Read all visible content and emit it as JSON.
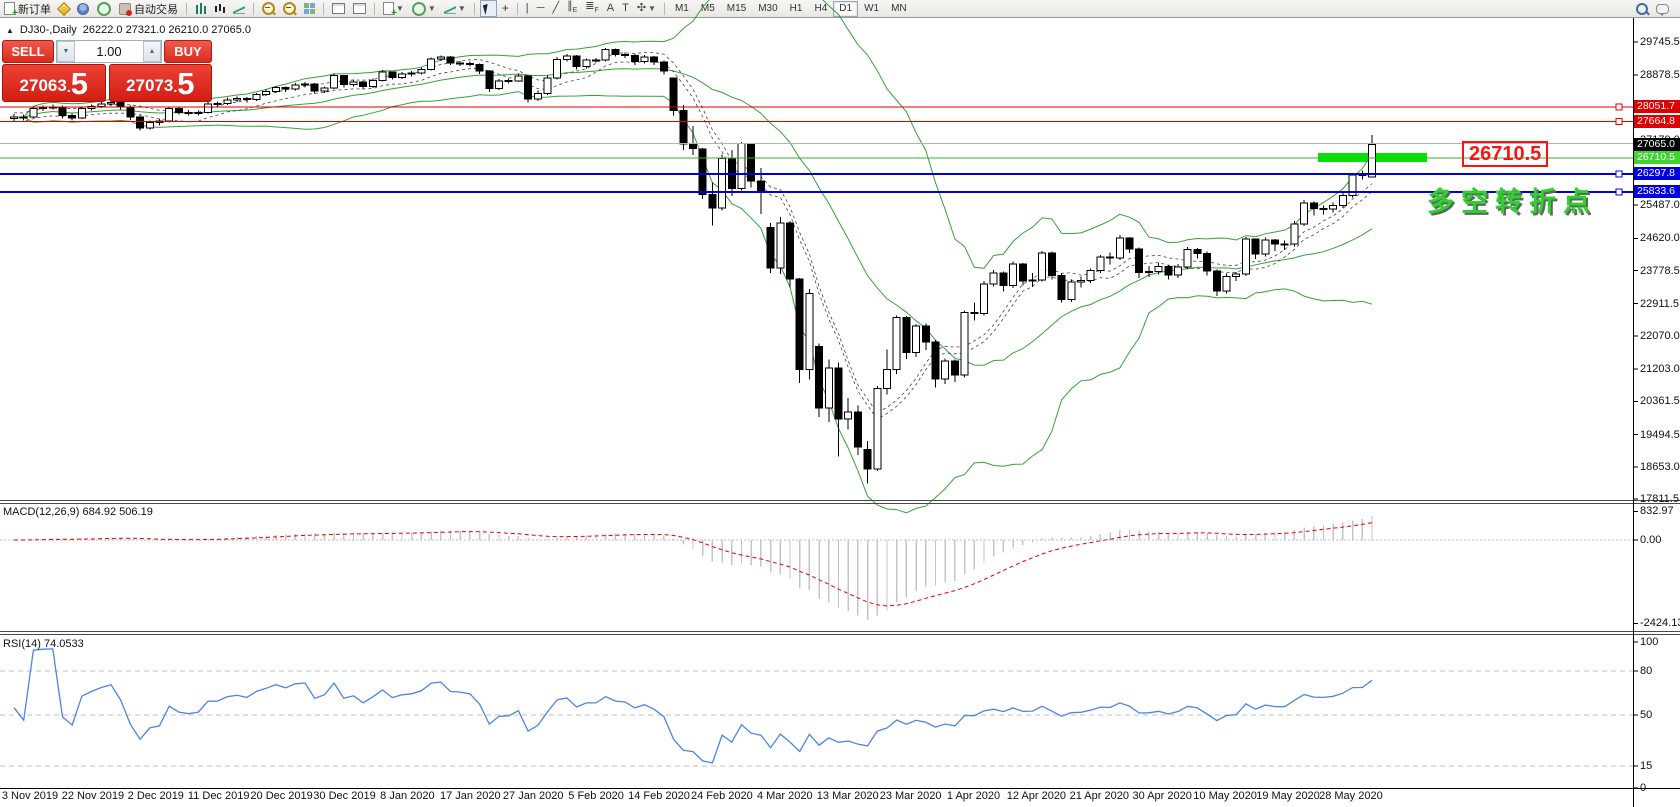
{
  "toolbar": {
    "new_order_label": "新订单",
    "autotrade_label": "自动交易",
    "timeframes": [
      "M1",
      "M5",
      "M15",
      "M30",
      "H1",
      "H4",
      "D1",
      "W1",
      "MN"
    ],
    "selected_timeframe": "D1"
  },
  "chart_header": {
    "symbol_title": "DJ30-,Daily",
    "ohlc_text": "26222.0 27321.0 26210.0 27065.0"
  },
  "trade_panel": {
    "sell_label": "SELL",
    "buy_label": "BUY",
    "volume": "1.00",
    "sell_price_main": "27063",
    "sell_price_frac": "5",
    "buy_price_main": "27073",
    "buy_price_frac": "5"
  },
  "indicator_labels": {
    "macd": "MACD(12,26,9) 684.92 506.19",
    "rsi": "RSI(14) 74.0533"
  },
  "annotations": {
    "price_callout": "26710.5",
    "cn_text": "多空转折点"
  },
  "axes": {
    "price_ticks": [
      29745.5,
      28878.5,
      27179.0,
      25487.0,
      24620.0,
      23778.5,
      22911.5,
      22070.0,
      21203.0,
      20361.5,
      19494.5,
      18653.0,
      17811.5
    ],
    "macd_ticks": [
      "832.97",
      "0.00",
      "-2424.13"
    ],
    "macd_tick_values": [
      832.97,
      0,
      -2424.13
    ],
    "rsi_ticks": [
      "100",
      "80",
      "50",
      "15",
      "0"
    ],
    "rsi_tick_values": [
      100,
      80,
      50,
      15,
      0
    ],
    "rsi_levels": [
      80,
      50,
      15
    ],
    "dates": [
      "3 Nov 2019",
      "22 Nov 2019",
      "2 Dec 2019",
      "11 Dec 2019",
      "20 Dec 2019",
      "30 Dec 2019",
      "8 Jan 2020",
      "17 Jan 2020",
      "27 Jan 2020",
      "5 Feb 2020",
      "14 Feb 2020",
      "24 Feb 2020",
      "4 Mar 2020",
      "13 Mar 2020",
      "23 Mar 2020",
      "1 Apr 2020",
      "12 Apr 2020",
      "21 Apr 2020",
      "30 Apr 2020",
      "10 May 2020",
      "19 May 2020",
      "28 May 2020"
    ]
  },
  "chart_data": {
    "type": "candlestick",
    "symbol": "DJ30-",
    "timeframe": "Daily",
    "title": "DJ30-,Daily 26222.0 27321.0 26210.0 27065.0",
    "current_price": {
      "value": 27065.0,
      "badge_color": "#000000"
    },
    "levels": [
      {
        "price": 28051.7,
        "color": "#dd0000",
        "thickness": 1,
        "badge": true,
        "anchor": true
      },
      {
        "price": 27664.8,
        "color": "#dd0000",
        "thickness": 1,
        "badge": true,
        "anchor": true
      },
      {
        "price": 27090.0,
        "color": "#b4b4b4",
        "thickness": 1,
        "badge": false,
        "anchor": false
      },
      {
        "price": 26710.5,
        "color": "#2db52d",
        "thickness": 1,
        "badge": true,
        "anchor": false,
        "badge_color": "#3fd32f"
      },
      {
        "price": 26297.8,
        "color": "#0000dd",
        "thickness": 2,
        "badge": true,
        "anchor": true
      },
      {
        "price": 25833.6,
        "color": "#0000dd",
        "thickness": 2,
        "badge": true,
        "anchor": true
      }
    ],
    "highlight_segment": {
      "price": 26710.5,
      "color": "#00e400"
    },
    "indicators": {
      "bollinger": {
        "period": 20,
        "deviation": 2,
        "color": "#37a337"
      },
      "envelope": {
        "period": 7,
        "percent": 0.4,
        "color": "#444444"
      },
      "macd": {
        "fast": 12,
        "slow": 26,
        "signal": 9,
        "hist_color": "#c4c4c4",
        "signal_color": "#ee0000"
      },
      "rsi": {
        "period": 14,
        "color": "#4a86e8"
      }
    },
    "candles": [
      [
        27750,
        27860,
        27680,
        27784
      ],
      [
        27784,
        27850,
        27700,
        27782
      ],
      [
        27782,
        28050,
        27760,
        28005
      ],
      [
        28005,
        28090,
        27950,
        28036
      ],
      [
        28036,
        28120,
        27980,
        28046
      ],
      [
        28046,
        28090,
        27750,
        27821
      ],
      [
        27821,
        27880,
        27700,
        27766
      ],
      [
        27766,
        28040,
        27740,
        28005
      ],
      [
        28005,
        28110,
        27960,
        28066
      ],
      [
        28066,
        28180,
        28020,
        28121
      ],
      [
        28121,
        28210,
        28080,
        28164
      ],
      [
        28164,
        28200,
        27980,
        28051
      ],
      [
        28051,
        28090,
        27710,
        27783
      ],
      [
        27783,
        27820,
        27430,
        27503
      ],
      [
        27503,
        27700,
        27460,
        27649
      ],
      [
        27649,
        27730,
        27570,
        27677
      ],
      [
        27677,
        28060,
        27650,
        28015
      ],
      [
        28015,
        28050,
        27850,
        27910
      ],
      [
        27910,
        27970,
        27820,
        27882
      ],
      [
        27882,
        27960,
        27830,
        27911
      ],
      [
        27911,
        28180,
        27880,
        28132
      ],
      [
        28132,
        28190,
        28060,
        28135
      ],
      [
        28135,
        28290,
        28100,
        28236
      ],
      [
        28236,
        28320,
        28180,
        28267
      ],
      [
        28267,
        28310,
        28170,
        28239
      ],
      [
        28239,
        28420,
        28200,
        28377
      ],
      [
        28377,
        28500,
        28340,
        28455
      ],
      [
        28455,
        28600,
        28410,
        28552
      ],
      [
        28552,
        28590,
        28440,
        28516
      ],
      [
        28516,
        28680,
        28480,
        28621
      ],
      [
        28621,
        28700,
        28560,
        28645
      ],
      [
        28645,
        28680,
        28400,
        28462
      ],
      [
        28462,
        28580,
        28420,
        28538
      ],
      [
        28538,
        28920,
        28520,
        28868
      ],
      [
        28868,
        28890,
        28560,
        28634
      ],
      [
        28634,
        28760,
        28580,
        28704
      ],
      [
        28704,
        28730,
        28520,
        28584
      ],
      [
        28584,
        28790,
        28540,
        28745
      ],
      [
        28745,
        29010,
        28710,
        28957
      ],
      [
        28957,
        28980,
        28760,
        28824
      ],
      [
        28824,
        28960,
        28780,
        28907
      ],
      [
        28907,
        28990,
        28850,
        28939
      ],
      [
        28939,
        29080,
        28900,
        29030
      ],
      [
        29030,
        29340,
        29000,
        29298
      ],
      [
        29298,
        29390,
        29250,
        29348
      ],
      [
        29348,
        29380,
        29140,
        29196
      ],
      [
        29196,
        29250,
        29120,
        29186
      ],
      [
        29186,
        29230,
        29100,
        29160
      ],
      [
        29160,
        29190,
        28910,
        28990
      ],
      [
        28990,
        29010,
        28440,
        28536
      ],
      [
        28536,
        28780,
        28490,
        28723
      ],
      [
        28723,
        28790,
        28660,
        28734
      ],
      [
        28734,
        28920,
        28700,
        28859
      ],
      [
        28859,
        28880,
        28170,
        28256
      ],
      [
        28256,
        28480,
        28200,
        28400
      ],
      [
        28400,
        28870,
        28360,
        28808
      ],
      [
        28808,
        29350,
        28770,
        29291
      ],
      [
        29291,
        29430,
        29240,
        29380
      ],
      [
        29380,
        29410,
        29030,
        29103
      ],
      [
        29103,
        29320,
        29060,
        29277
      ],
      [
        29277,
        29330,
        29210,
        29276
      ],
      [
        29276,
        29590,
        29240,
        29551
      ],
      [
        29551,
        29580,
        29370,
        29423
      ],
      [
        29423,
        29470,
        29330,
        29398
      ],
      [
        29398,
        29430,
        29150,
        29232
      ],
      [
        29232,
        29400,
        29190,
        29348
      ],
      [
        29348,
        29380,
        29150,
        29219
      ],
      [
        29219,
        29260,
        28900,
        28992
      ],
      [
        28800,
        28810,
        27830,
        27960
      ],
      [
        27960,
        28100,
        26930,
        27081
      ],
      [
        27081,
        27550,
        26800,
        26957
      ],
      [
        26957,
        26980,
        25650,
        25766
      ],
      [
        25766,
        26080,
        24960,
        25409
      ],
      [
        25409,
        26810,
        25340,
        26703
      ],
      [
        26703,
        26920,
        25720,
        25917
      ],
      [
        25917,
        27140,
        25870,
        27090
      ],
      [
        27090,
        27110,
        25940,
        26121
      ],
      [
        26121,
        26460,
        25250,
        25864
      ],
      [
        24900,
        25020,
        23720,
        23851
      ],
      [
        23851,
        25180,
        23690,
        25018
      ],
      [
        25018,
        25070,
        23330,
        23553
      ],
      [
        23553,
        23580,
        20840,
        21200
      ],
      [
        21200,
        23290,
        20930,
        23185
      ],
      [
        21800,
        21870,
        19960,
        20188
      ],
      [
        20188,
        21460,
        19820,
        21237
      ],
      [
        21237,
        21380,
        18920,
        19898
      ],
      [
        19898,
        20450,
        19630,
        20087
      ],
      [
        20087,
        20250,
        18960,
        19173
      ],
      [
        19100,
        19330,
        18213,
        18591
      ],
      [
        18591,
        20760,
        18540,
        20704
      ],
      [
        20704,
        21720,
        20540,
        21200
      ],
      [
        21200,
        22600,
        21080,
        22552
      ],
      [
        22552,
        22590,
        21470,
        21636
      ],
      [
        21636,
        22380,
        21520,
        22327
      ],
      [
        22327,
        22390,
        21710,
        21917
      ],
      [
        21917,
        21960,
        20730,
        20943
      ],
      [
        20943,
        21480,
        20820,
        21413
      ],
      [
        21413,
        21450,
        20870,
        21052
      ],
      [
        21052,
        22740,
        20990,
        22679
      ],
      [
        22679,
        22940,
        22470,
        22653
      ],
      [
        22653,
        23510,
        22600,
        23433
      ],
      [
        23433,
        23790,
        23360,
        23719
      ],
      [
        23719,
        23750,
        23230,
        23390
      ],
      [
        23390,
        24010,
        23320,
        23949
      ],
      [
        23949,
        23980,
        23390,
        23504
      ],
      [
        23504,
        23720,
        23350,
        23537
      ],
      [
        23537,
        24290,
        23490,
        24242
      ],
      [
        24242,
        24280,
        23540,
        23650
      ],
      [
        23650,
        23700,
        22940,
        23018
      ],
      [
        23018,
        23540,
        22960,
        23475
      ],
      [
        23475,
        23620,
        23330,
        23515
      ],
      [
        23515,
        23830,
        23450,
        23775
      ],
      [
        23775,
        24190,
        23720,
        24133
      ],
      [
        24133,
        24250,
        23940,
        24101
      ],
      [
        24101,
        24700,
        24050,
        24633
      ],
      [
        24633,
        24660,
        24230,
        24345
      ],
      [
        24345,
        24380,
        23590,
        23723
      ],
      [
        23723,
        23900,
        23610,
        23749
      ],
      [
        23749,
        23980,
        23680,
        23883
      ],
      [
        23883,
        23920,
        23550,
        23664
      ],
      [
        23664,
        23950,
        23590,
        23875
      ],
      [
        23875,
        24390,
        23820,
        24331
      ],
      [
        24331,
        24370,
        24090,
        24221
      ],
      [
        24221,
        24270,
        23650,
        23764
      ],
      [
        23764,
        23800,
        23120,
        23247
      ],
      [
        23247,
        23700,
        23180,
        23625
      ],
      [
        23625,
        23740,
        23510,
        23685
      ],
      [
        23685,
        24650,
        23630,
        24597
      ],
      [
        24597,
        24620,
        24080,
        24206
      ],
      [
        24206,
        24640,
        24150,
        24575
      ],
      [
        24575,
        24600,
        24290,
        24474
      ],
      [
        24474,
        24560,
        24310,
        24465
      ],
      [
        24465,
        25070,
        24410,
        24995
      ],
      [
        24995,
        25620,
        24940,
        25548
      ],
      [
        25548,
        25580,
        25220,
        25400
      ],
      [
        25400,
        25470,
        25240,
        25383
      ],
      [
        25383,
        25560,
        25300,
        25475
      ],
      [
        25475,
        25800,
        25410,
        25742
      ],
      [
        25742,
        26320,
        25690,
        26269
      ],
      [
        26269,
        26390,
        26150,
        26281
      ],
      [
        26222,
        27321,
        26210,
        27065
      ]
    ]
  }
}
